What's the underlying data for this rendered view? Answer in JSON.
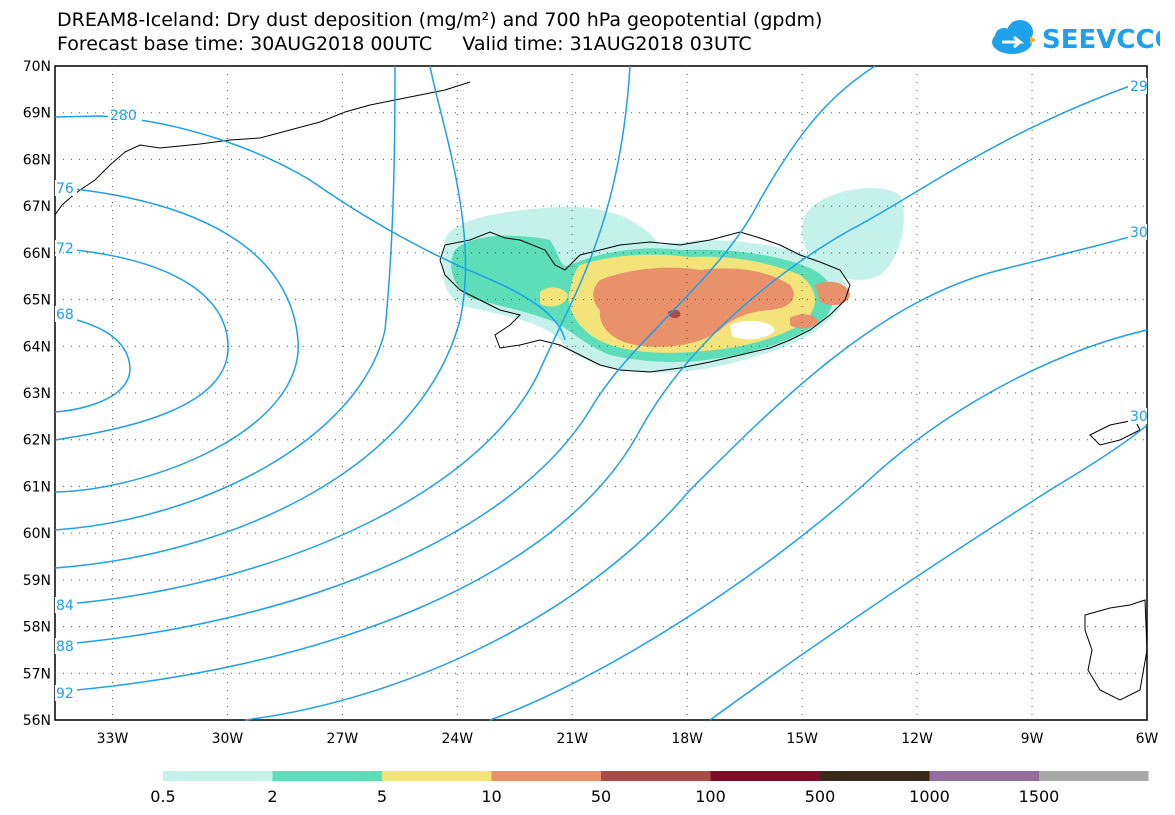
{
  "title_line1": "DREAM8-Iceland: Dry dust deposition (mg/m²) and 700 hPa geopotential (gpdm)",
  "title_line2": "Forecast base time: 30AUG2018 00UTC     Valid time: 31AUG2018 03UTC",
  "logo_text": "SEEVCCC",
  "colors": {
    "contour": "#1ea0ea",
    "coast": "#000000",
    "logo": "#1ea0ea"
  },
  "lat_labels": [
    "70N",
    "69N",
    "68N",
    "67N",
    "66N",
    "65N",
    "64N",
    "63N",
    "62N",
    "61N",
    "60N",
    "59N",
    "58N",
    "57N",
    "56N"
  ],
  "lon_labels": [
    "33W",
    "30W",
    "27W",
    "24W",
    "21W",
    "18W",
    "15W",
    "12W",
    "9W",
    "6W"
  ],
  "contour_labels": [
    "280",
    "76",
    "72",
    "68",
    "84",
    "88",
    "92",
    "29",
    "30",
    "30"
  ],
  "legend": {
    "colors": [
      "#c4f2ea",
      "#5ede b8",
      "#f4e37a",
      "#e8916a",
      "#a94b45",
      "#7d0e26",
      "#3b2a1a",
      "#936c9d",
      "#a8a8a8"
    ],
    "labels": [
      "0.5",
      "2",
      "5",
      "10",
      "50",
      "100",
      "500",
      "1000",
      "1500"
    ]
  }
}
